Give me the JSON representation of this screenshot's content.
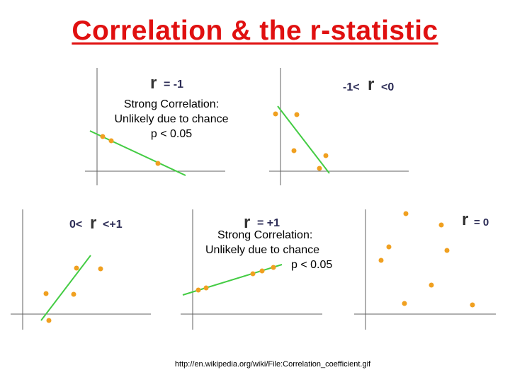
{
  "title": "Correlation & the r-statistic",
  "panels": [
    {
      "id": "p1",
      "r_letter": "r",
      "expr": "= -1",
      "note": [
        "Strong Correlation:",
        "Unlikely due to chance",
        "p < 0.05"
      ]
    },
    {
      "id": "p2",
      "r_letter": "r",
      "expr_before": "-1<",
      "expr_after": "<0"
    },
    {
      "id": "p3",
      "r_letter": "r",
      "expr_before": "0<",
      "expr_after": "<+1"
    },
    {
      "id": "p4",
      "r_letter": "r",
      "expr": "= +1",
      "note": [
        "Strong Correlation:",
        "Unlikely due to chance",
        "p < 0.05"
      ]
    },
    {
      "id": "p5",
      "r_letter": "r",
      "expr": "= 0"
    }
  ],
  "source_url": "http://en.wikipedia.org/wiki/File:Correlation_coefficient.gif",
  "colors": {
    "title": "#e01010",
    "point": "#f0a020",
    "fit_line": "#44cc44",
    "axis": "#606060"
  }
}
